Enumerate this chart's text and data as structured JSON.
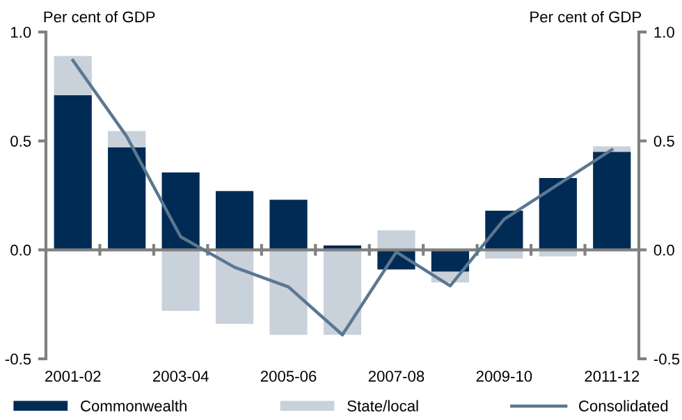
{
  "chart_data": {
    "type": "bar",
    "stacked": true,
    "ylabel": "Per cent of GDP",
    "y2label": "Per cent of GDP",
    "categories": [
      "2001-02",
      null,
      "2003-04",
      null,
      "2005-06",
      null,
      "2007-08",
      null,
      "2009-10",
      null,
      "2011-12"
    ],
    "series": [
      {
        "name": "Commonwealth",
        "color": "#002b55",
        "values": [
          0.71,
          0.47,
          0.355,
          0.27,
          0.23,
          0.02,
          -0.09,
          -0.1,
          0.18,
          0.33,
          0.45
        ]
      },
      {
        "name": "State/local",
        "color": "#c9d1db",
        "values": [
          0.18,
          0.075,
          -0.28,
          -0.34,
          -0.39,
          -0.39,
          0.09,
          -0.05,
          -0.04,
          -0.03,
          0.025
        ]
      },
      {
        "name": "Consolidated",
        "type": "line",
        "color": "#5b7791",
        "values": [
          0.87,
          0.52,
          0.06,
          -0.08,
          -0.17,
          -0.39,
          -0.01,
          -0.165,
          0.14,
          0.3,
          0.46
        ]
      }
    ],
    "ylim": [
      -0.5,
      1.0
    ],
    "yticks": [
      {
        "value": -0.5,
        "label": "-0.5"
      },
      {
        "value": 0,
        "label": "0.0"
      },
      {
        "value": 0.5,
        "label": "0.5"
      },
      {
        "value": 1.0,
        "label": "1.0"
      }
    ],
    "y2lim": [
      -0.5,
      1.0
    ],
    "y2ticks": [
      {
        "value": -0.5,
        "label": "-0.5"
      },
      {
        "value": 0,
        "label": "0.0"
      },
      {
        "value": 0.5,
        "label": "0.5"
      },
      {
        "value": 1.0,
        "label": "1.0"
      }
    ],
    "legend": "bottom",
    "marker": "none",
    "line_style": "solid"
  }
}
